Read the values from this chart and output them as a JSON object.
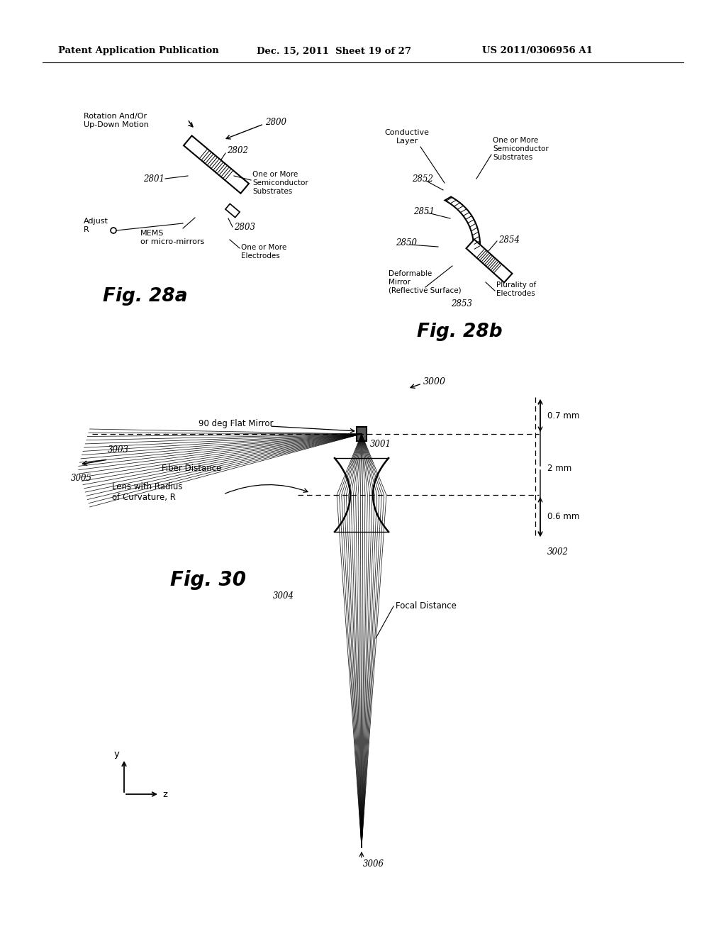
{
  "bg_color": "#ffffff",
  "header_left": "Patent Application Publication",
  "header_mid": "Dec. 15, 2011  Sheet 19 of 27",
  "header_right": "US 2011/0306956 A1",
  "fig28a_label": "Fig. 28a",
  "fig28b_label": "Fig. 28b",
  "fig30_label": "Fig. 30",
  "ref_2800": "2800",
  "ref_2801": "2801",
  "ref_2802": "2802",
  "ref_2803": "2803",
  "ref_2850": "2850",
  "ref_2851": "2851",
  "ref_2852": "2852",
  "ref_2853": "2853",
  "ref_2854": "2854",
  "ref_3000": "3000",
  "ref_3001": "3001",
  "ref_3002": "3002",
  "ref_3003": "3003",
  "ref_3004": "3004",
  "ref_3005": "3005",
  "ref_3006": "3006",
  "label_rotation": "Rotation And/Or\nUp-Down Motion",
  "label_mems": "MEMS\nor micro-mirrors",
  "label_adjust": "Adjust\nR",
  "label_one_more_semi_a": "One or More\nSemiconductor\nSubstrates",
  "label_one_more_elec": "One or More\nElectrodes",
  "label_cond_layer": "Conductive\nLayer",
  "label_one_more_semi_b": "One or More\nSemiconductor\nSubstrates",
  "label_deform": "Deformable\nMirror\n(Reflective Surface)",
  "label_plural_elec": "Plurality of\nElectrodes",
  "label_90deg": "90 deg Flat Mirror",
  "label_fiber_dist": "Fiber Distance",
  "label_lens": "Lens with Radius\nof Curvature, R",
  "label_focal": "Focal Distance",
  "label_07mm": "0.7 mm",
  "label_2mm": "2 mm",
  "label_06mm": "0.6 mm",
  "label_y": "y",
  "label_z": "z"
}
